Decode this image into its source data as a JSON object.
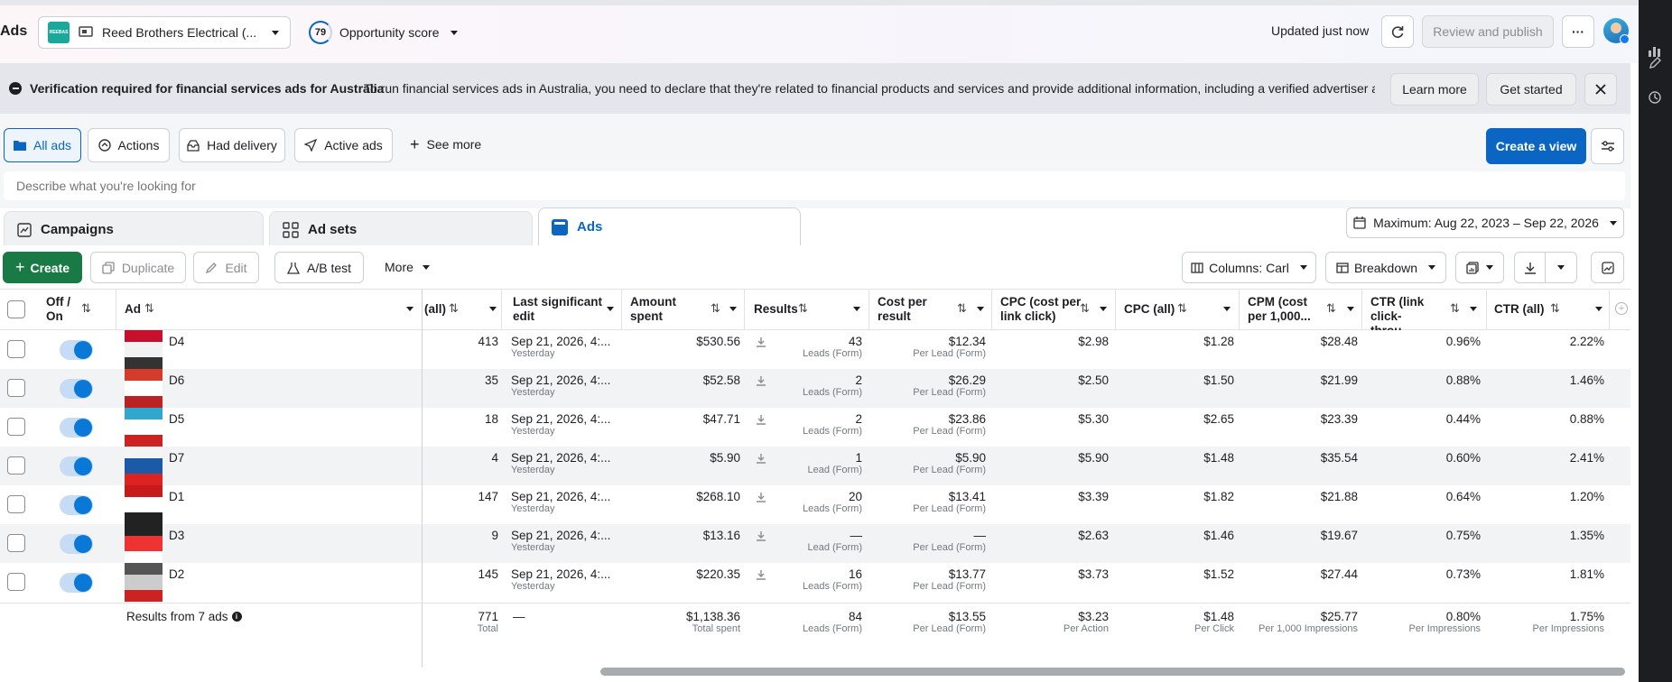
{
  "header": {
    "app_title": "Ads",
    "account_logo": "REEBAS",
    "account_name": "Reed Brothers Electrical (...",
    "opportunity_score_value": "79",
    "opportunity_score_label": "Opportunity score",
    "updated_text": "Updated just now",
    "review_publish": "Review and publish",
    "more_dots": "···"
  },
  "banner": {
    "title": "Verification required for financial services ads for Australia",
    "text": "To run financial services ads in Australia, you need to declare that they're related to financial products and services and provide additional information, including a verified advertiser and p...",
    "learn_more": "Learn more",
    "get_started": "Get started"
  },
  "filters": {
    "all_ads": "All ads",
    "actions": "Actions",
    "had_delivery": "Had delivery",
    "active_ads": "Active ads",
    "see_more": "See more",
    "create_view": "Create a view",
    "search_placeholder": "Describe what you're looking for"
  },
  "levels": {
    "campaigns": "Campaigns",
    "ad_sets": "Ad sets",
    "ads": "Ads",
    "date_range": "Maximum: Aug 22, 2023 – Sep 22, 2026"
  },
  "toolbar": {
    "create": "Create",
    "duplicate": "Duplicate",
    "edit": "Edit",
    "ab_test": "A/B test",
    "more": "More",
    "columns": "Columns: Carl",
    "breakdown": "Breakdown"
  },
  "table": {
    "headers": {
      "off_on": "Off / On",
      "ad": "Ad",
      "all": "(all)",
      "last_edit": "Last significant edit",
      "amount_spent": "Amount spent",
      "results": "Results",
      "cost_per_result": "Cost per result",
      "cpc_link": "CPC (cost per link click)",
      "cpc_all": "CPC (all)",
      "cpm": "CPM (cost per 1,000...",
      "ctr_link": "CTR (link click-throu...",
      "ctr_all": "CTR (all)"
    },
    "rows": [
      {
        "name": "D4",
        "all": "413",
        "edit": "Sep 21, 2026, 4:...",
        "edit_sub": "Yesterday",
        "spent": "$530.56",
        "results": "43",
        "results_sub": "Leads (Form)",
        "cpr": "$12.34",
        "cpr_sub": "Per Lead (Form)",
        "cpc_link": "$2.98",
        "cpc_all": "$1.28",
        "cpm": "$28.48",
        "ctr_link": "0.96%",
        "ctr_all": "2.22%"
      },
      {
        "name": "D6",
        "all": "35",
        "edit": "Sep 21, 2026, 4:...",
        "edit_sub": "Yesterday",
        "spent": "$52.58",
        "results": "2",
        "results_sub": "Leads (Form)",
        "cpr": "$26.29",
        "cpr_sub": "Per Lead (Form)",
        "cpc_link": "$2.50",
        "cpc_all": "$1.50",
        "cpm": "$21.99",
        "ctr_link": "0.88%",
        "ctr_all": "1.46%"
      },
      {
        "name": "D5",
        "all": "18",
        "edit": "Sep 21, 2026, 4:...",
        "edit_sub": "Yesterday",
        "spent": "$47.71",
        "results": "2",
        "results_sub": "Leads (Form)",
        "cpr": "$23.86",
        "cpr_sub": "Per Lead (Form)",
        "cpc_link": "$5.30",
        "cpc_all": "$2.65",
        "cpm": "$23.39",
        "ctr_link": "0.44%",
        "ctr_all": "0.88%"
      },
      {
        "name": "D7",
        "all": "4",
        "edit": "Sep 21, 2026, 4:...",
        "edit_sub": "Yesterday",
        "spent": "$5.90",
        "results": "1",
        "results_sub": "Lead (Form)",
        "cpr": "$5.90",
        "cpr_sub": "Per Lead (Form)",
        "cpc_link": "$5.90",
        "cpc_all": "$1.48",
        "cpm": "$35.54",
        "ctr_link": "0.60%",
        "ctr_all": "2.41%"
      },
      {
        "name": "D1",
        "all": "147",
        "edit": "Sep 21, 2026, 4:...",
        "edit_sub": "Yesterday",
        "spent": "$268.10",
        "results": "20",
        "results_sub": "Leads (Form)",
        "cpr": "$13.41",
        "cpr_sub": "Per Lead (Form)",
        "cpc_link": "$3.39",
        "cpc_all": "$1.82",
        "cpm": "$21.88",
        "ctr_link": "0.64%",
        "ctr_all": "1.20%"
      },
      {
        "name": "D3",
        "all": "9",
        "edit": "Sep 21, 2026, 4:...",
        "edit_sub": "Yesterday",
        "spent": "$13.16",
        "results": "—",
        "results_sub": "Lead (Form)",
        "cpr": "—",
        "cpr_sub": "Per Lead (Form)",
        "cpc_link": "$2.63",
        "cpc_all": "$1.46",
        "cpm": "$19.67",
        "ctr_link": "0.75%",
        "ctr_all": "1.35%"
      },
      {
        "name": "D2",
        "all": "145",
        "edit": "Sep 21, 2026, 4:...",
        "edit_sub": "Yesterday",
        "spent": "$220.35",
        "results": "16",
        "results_sub": "Leads (Form)",
        "cpr": "$13.77",
        "cpr_sub": "Per Lead (Form)",
        "cpc_link": "$3.73",
        "cpc_all": "$1.52",
        "cpm": "$27.44",
        "ctr_link": "0.73%",
        "ctr_all": "1.81%"
      }
    ],
    "totals": {
      "label": "Results from 7 ads",
      "all": "771",
      "all_sub": "Total",
      "edit": "—",
      "spent": "$1,138.36",
      "spent_sub": "Total spent",
      "results": "84",
      "results_sub": "Leads (Form)",
      "cpr": "$13.55",
      "cpr_sub": "Per Lead (Form)",
      "cpc_link": "$3.23",
      "cpc_link_sub": "Per Action",
      "cpc_all": "$1.48",
      "cpc_all_sub": "Per Click",
      "cpm": "$25.77",
      "cpm_sub": "Per 1,000 Impressions",
      "ctr_link": "0.80%",
      "ctr_link_sub": "Per Impressions",
      "ctr_all": "1.75%",
      "ctr_all_sub": "Per Impressions"
    }
  },
  "colors": {
    "primary": "#0a66c2",
    "create": "#1a7a45",
    "toggle": "#0a78d7"
  }
}
